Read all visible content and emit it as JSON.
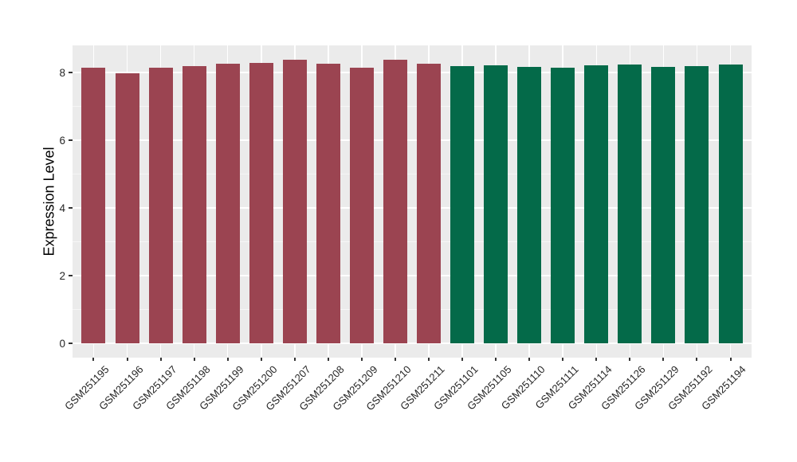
{
  "figure": {
    "background": "#FFFFFF"
  },
  "panel_style": {
    "background": "#EBEBEB",
    "grid_major_color": "#FFFFFF",
    "grid_minor_color": "#F5F5F5",
    "tick_color": "#333333",
    "axis_text_color": "#262626"
  },
  "chart_data": {
    "type": "bar",
    "title": "",
    "xlabel": "",
    "ylabel": "Expression Level",
    "ylim": [
      0,
      8.8
    ],
    "ylim_display": [
      -0.42,
      8.8
    ],
    "y_ticks": [
      0,
      2,
      4,
      6,
      8
    ],
    "y_minor_ticks": [
      1,
      3,
      5,
      7
    ],
    "grid": "on",
    "legend": "none",
    "x_tick_angle": 45,
    "bars": [
      {
        "label": "GSM251195",
        "value": 8.14,
        "color": "#9B4451"
      },
      {
        "label": "GSM251196",
        "value": 7.98,
        "color": "#9B4451"
      },
      {
        "label": "GSM251197",
        "value": 8.15,
        "color": "#9B4451"
      },
      {
        "label": "GSM251198",
        "value": 8.19,
        "color": "#9B4451"
      },
      {
        "label": "GSM251199",
        "value": 8.26,
        "color": "#9B4451"
      },
      {
        "label": "GSM251200",
        "value": 8.29,
        "color": "#9B4451"
      },
      {
        "label": "GSM251207",
        "value": 8.37,
        "color": "#9B4451"
      },
      {
        "label": "GSM251208",
        "value": 8.25,
        "color": "#9B4451"
      },
      {
        "label": "GSM251209",
        "value": 8.15,
        "color": "#9B4451"
      },
      {
        "label": "GSM251210",
        "value": 8.37,
        "color": "#9B4451"
      },
      {
        "label": "GSM251211",
        "value": 8.25,
        "color": "#9B4451"
      },
      {
        "label": "GSM251101",
        "value": 8.19,
        "color": "#046A49"
      },
      {
        "label": "GSM251105",
        "value": 8.22,
        "color": "#046A49"
      },
      {
        "label": "GSM251110",
        "value": 8.17,
        "color": "#046A49"
      },
      {
        "label": "GSM251111",
        "value": 8.15,
        "color": "#046A49"
      },
      {
        "label": "GSM251114",
        "value": 8.21,
        "color": "#046A49"
      },
      {
        "label": "GSM251126",
        "value": 8.24,
        "color": "#046A49"
      },
      {
        "label": "GSM251129",
        "value": 8.17,
        "color": "#046A49"
      },
      {
        "label": "GSM251192",
        "value": 8.19,
        "color": "#046A49"
      },
      {
        "label": "GSM251194",
        "value": 8.23,
        "color": "#046A49"
      }
    ]
  }
}
